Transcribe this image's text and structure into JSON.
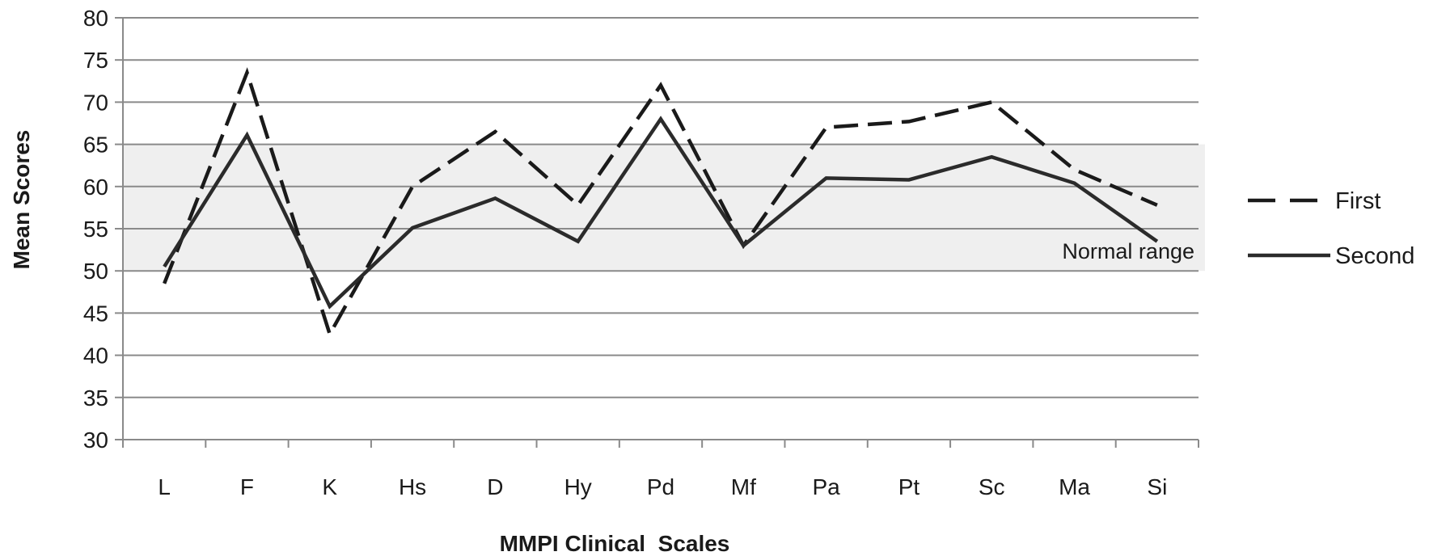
{
  "chart_data": {
    "type": "line",
    "xlabel": "MMPI Clinical  Scales",
    "ylabel": "Mean Scores",
    "ylim": [
      30,
      80
    ],
    "yticks": [
      30,
      35,
      40,
      45,
      50,
      55,
      60,
      65,
      70,
      75,
      80
    ],
    "categories": [
      "L",
      "F",
      "K",
      "Hs",
      "D",
      "Hy",
      "Pd",
      "Mf",
      "Pa",
      "Pt",
      "Sc",
      "Ma",
      "Si"
    ],
    "grid": true,
    "legend_position": "right",
    "band": {
      "label": "Normal range",
      "from": 50,
      "to": 65,
      "color": "#efefef"
    },
    "series": [
      {
        "name": "First",
        "style": "dashed",
        "color": "#1a1a1a",
        "values": [
          48.5,
          73.5,
          42.5,
          60,
          66.5,
          57.8,
          72,
          53,
          67,
          67.7,
          70,
          62,
          57.8
        ]
      },
      {
        "name": "Second",
        "style": "solid",
        "color": "#2b2b2b",
        "values": [
          50.5,
          66.1,
          45.8,
          55.1,
          58.6,
          53.5,
          68,
          53,
          61,
          60.8,
          63.5,
          60.4,
          53.5
        ]
      }
    ]
  }
}
